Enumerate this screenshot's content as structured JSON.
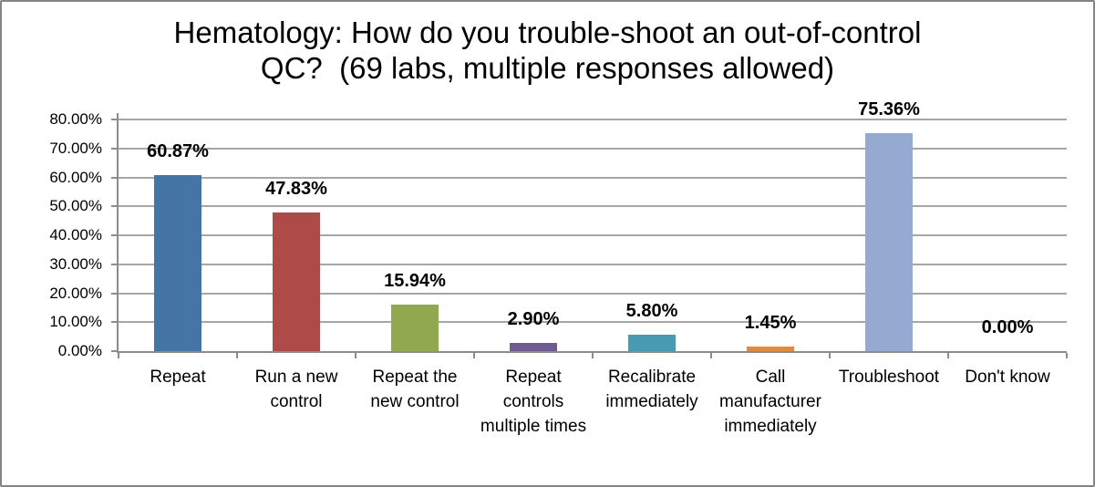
{
  "chart_data": {
    "type": "bar",
    "title": "Hematology: How do you trouble-shoot an out-of-control QC?  (69 labs, multiple responses allowed)",
    "title_lines": [
      "Hematology: How do you trouble-shoot an out-of-control",
      "QC?  (69 labs, multiple responses allowed)"
    ],
    "categories": [
      "Repeat",
      "Run a new control",
      "Repeat the new control",
      "Repeat controls multiple times",
      "Recalibrate immediately",
      "Call manufacturer immediately",
      "Troubleshoot",
      "Don't know"
    ],
    "category_label_lines": [
      [
        "Repeat"
      ],
      [
        "Run a new",
        "control"
      ],
      [
        "Repeat the",
        "new control"
      ],
      [
        "Repeat",
        "controls",
        "multiple times"
      ],
      [
        "Recalibrate",
        "immediately"
      ],
      [
        "Call",
        "manufacturer",
        "immediately"
      ],
      [
        "Troubleshoot"
      ],
      [
        "Don't know"
      ]
    ],
    "values": [
      60.87,
      47.83,
      15.94,
      2.9,
      5.8,
      1.45,
      75.36,
      0
    ],
    "data_labels": [
      "60.87%",
      "47.83%",
      "15.94%",
      "2.90%",
      "5.80%",
      "1.45%",
      "75.36%",
      "0.00%"
    ],
    "bar_colors": [
      "#4575A5",
      "#AE4B48",
      "#90A951",
      "#6F5B90",
      "#479BB0",
      "#E08B40",
      "#96AAD1",
      null
    ],
    "ylim": [
      0,
      80
    ],
    "ytick_step": 10,
    "ytick_labels": [
      "0.00%",
      "10.00%",
      "20.00%",
      "30.00%",
      "40.00%",
      "50.00%",
      "60.00%",
      "70.00%",
      "80.00%"
    ],
    "xlabel": "",
    "ylabel": "",
    "grid": true,
    "legend": "none",
    "colors": {
      "gridline": "#A6A6A6",
      "axis": "#8C8C8C",
      "text": "#000000",
      "background": "#FFFFFF",
      "frame_border": "#848484"
    }
  }
}
